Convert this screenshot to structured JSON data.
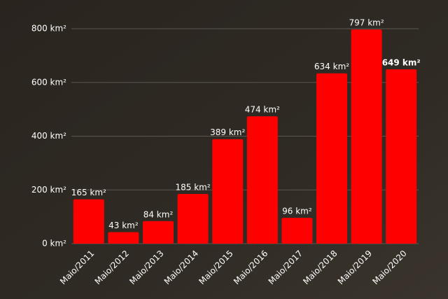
{
  "chart_data": {
    "type": "bar",
    "categories": [
      "Maio/2011",
      "Maio/2012",
      "Maio/2013",
      "Maio/2014",
      "Maio/2015",
      "Maio/2016",
      "Maio/2017",
      "Maio/2018",
      "Maio/2019",
      "Maio/2020"
    ],
    "values": [
      165,
      43,
      84,
      185,
      389,
      474,
      96,
      634,
      797,
      649
    ],
    "value_labels": [
      "165 km²",
      "43 km²",
      "84 km²",
      "185 km²",
      "389 km²",
      "474 km²",
      "96 km²",
      "634 km²",
      "797 km²",
      "649 km²"
    ],
    "color": "#ff0000",
    "ylim": [
      0,
      800
    ],
    "yticks": [
      {
        "value": 0,
        "label": "0 km²"
      },
      {
        "value": 200,
        "label": "200 km²"
      },
      {
        "value": 400,
        "label": "400 km²"
      },
      {
        "value": 600,
        "label": "600 km²"
      },
      {
        "value": 800,
        "label": "800 km²"
      }
    ],
    "grid": true
  }
}
